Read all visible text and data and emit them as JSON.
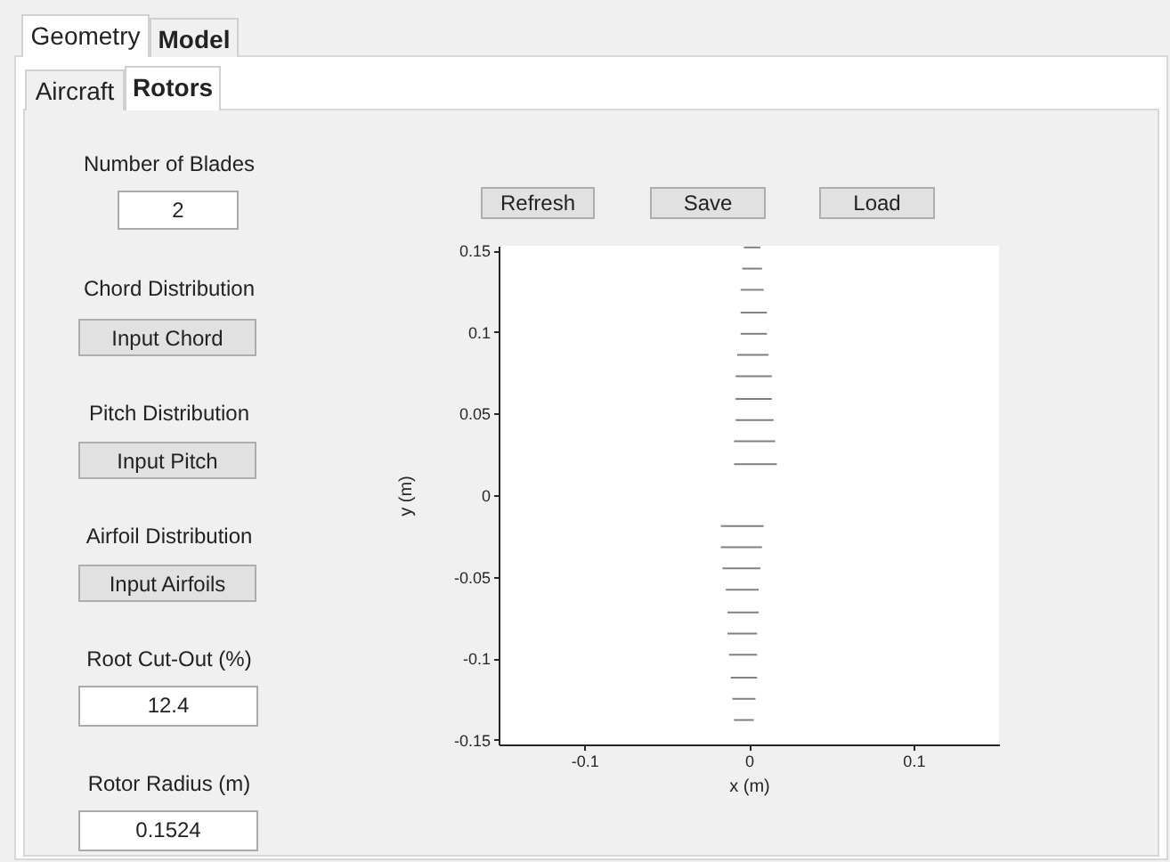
{
  "chart_data": {
    "type": "line",
    "xlabel": "x (m)",
    "ylabel": "y (m)",
    "xlim": [
      -0.152,
      0.152
    ],
    "ylim": [
      -0.153,
      0.153
    ],
    "xticks": [
      -0.1,
      0,
      0.1
    ],
    "yticks": [
      -0.15,
      -0.1,
      -0.05,
      0,
      0.05,
      0.1,
      0.15
    ],
    "grid": false,
    "marker": "none",
    "line_style": "solid",
    "annotations": [
      "Geometry",
      "Model",
      "Aircraft",
      "Rotors",
      "Number of Blades",
      "2",
      "Chord Distribution",
      "Input Chord",
      "Pitch Distribution",
      "Input Pitch",
      "Airfoil Distribution",
      "Input Airfoils",
      "Root Cut-Out (%)",
      "12.4",
      "Rotor Radius (m)",
      "0.1524",
      "Refresh",
      "Save",
      "Load"
    ],
    "series": [
      {
        "color": "#808080",
        "x": [
          -0.003,
          0.007
        ],
        "values": [
          0.152,
          0.152
        ]
      },
      {
        "color": "#808080",
        "x": [
          -0.004,
          0.008
        ],
        "values": [
          0.139,
          0.139
        ]
      },
      {
        "color": "#808080",
        "x": [
          -0.005,
          0.009
        ],
        "values": [
          0.126,
          0.126
        ]
      },
      {
        "color": "#808080",
        "x": [
          -0.005,
          0.011
        ],
        "values": [
          0.112,
          0.112
        ]
      },
      {
        "color": "#808080",
        "x": [
          -0.005,
          0.011
        ],
        "values": [
          0.099,
          0.099
        ]
      },
      {
        "color": "#808080",
        "x": [
          -0.007,
          0.012
        ],
        "values": [
          0.086,
          0.086
        ]
      },
      {
        "color": "#808080",
        "x": [
          -0.008,
          0.014
        ],
        "values": [
          0.073,
          0.073
        ]
      },
      {
        "color": "#808080",
        "x": [
          -0.008,
          0.014
        ],
        "values": [
          0.059,
          0.059
        ]
      },
      {
        "color": "#808080",
        "x": [
          -0.008,
          0.015
        ],
        "values": [
          0.046,
          0.046
        ]
      },
      {
        "color": "#808080",
        "x": [
          -0.009,
          0.016
        ],
        "values": [
          0.033,
          0.033
        ]
      },
      {
        "color": "#808080",
        "x": [
          -0.009,
          0.017
        ],
        "values": [
          0.019,
          0.019
        ]
      },
      {
        "color": "#808080",
        "x": [
          -0.017,
          0.009
        ],
        "values": [
          -0.019,
          -0.019
        ]
      },
      {
        "color": "#808080",
        "x": [
          -0.017,
          0.008
        ],
        "values": [
          -0.032,
          -0.032
        ]
      },
      {
        "color": "#808080",
        "x": [
          -0.016,
          0.007
        ],
        "values": [
          -0.045,
          -0.045
        ]
      },
      {
        "color": "#808080",
        "x": [
          -0.014,
          0.006
        ],
        "values": [
          -0.058,
          -0.058
        ]
      },
      {
        "color": "#808080",
        "x": [
          -0.013,
          0.006
        ],
        "values": [
          -0.072,
          -0.072
        ]
      },
      {
        "color": "#808080",
        "x": [
          -0.013,
          0.005
        ],
        "values": [
          -0.085,
          -0.085
        ]
      },
      {
        "color": "#808080",
        "x": [
          -0.012,
          0.005
        ],
        "values": [
          -0.098,
          -0.098
        ]
      },
      {
        "color": "#808080",
        "x": [
          -0.011,
          0.005
        ],
        "values": [
          -0.112,
          -0.112
        ]
      },
      {
        "color": "#808080",
        "x": [
          -0.01,
          0.004
        ],
        "values": [
          -0.125,
          -0.125
        ]
      },
      {
        "color": "#808080",
        "x": [
          -0.009,
          0.003
        ],
        "values": [
          -0.138,
          -0.138
        ]
      }
    ]
  }
}
